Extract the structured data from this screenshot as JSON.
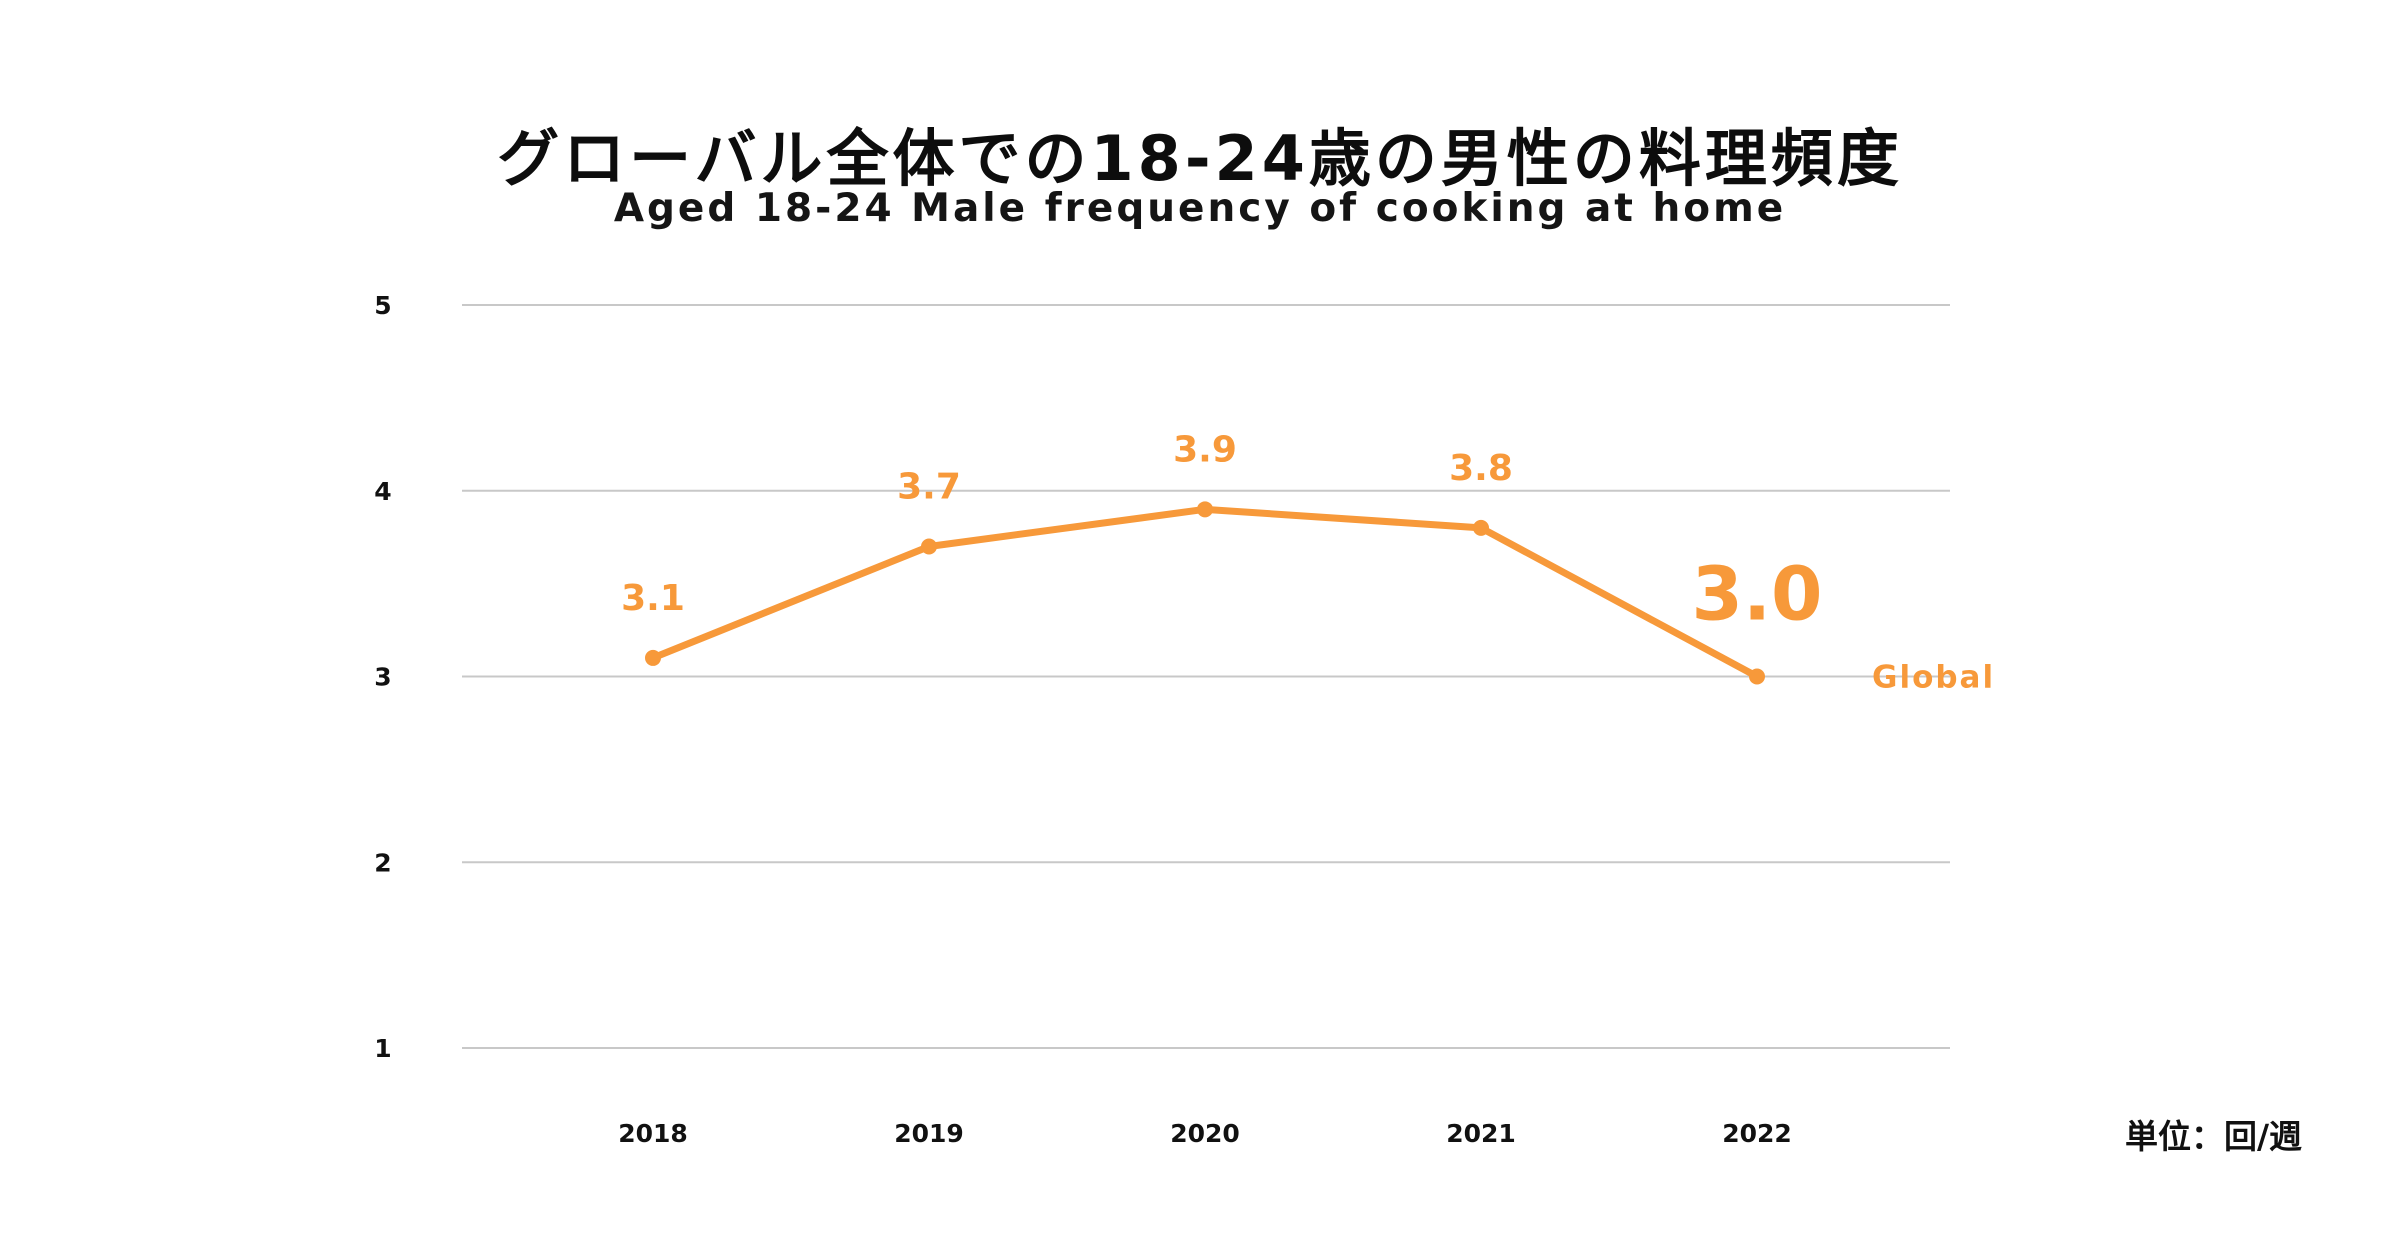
{
  "title": "グローバル全体での18-24歳の男性の料理頻度",
  "subtitle": "Aged 18-24 Male frequency of cooking at home",
  "unit_label": "単位：回/週",
  "colors": {
    "series": "#F7993A",
    "grid": "#c8c8c8",
    "text": "#111111"
  },
  "chart_data": {
    "type": "line",
    "title": "グローバル全体での18-24歳の男性の料理頻度",
    "subtitle": "Aged 18-24 Male frequency of cooking at home",
    "x": [
      "2018",
      "2019",
      "2020",
      "2021",
      "2022"
    ],
    "series": [
      {
        "name": "Global",
        "values": [
          3.1,
          3.7,
          3.9,
          3.8,
          3.0
        ],
        "value_labels": [
          "3.1",
          "3.7",
          "3.9",
          "3.8",
          "3.0"
        ]
      }
    ],
    "ylim": [
      1,
      5
    ],
    "yticks": [
      "1",
      "2",
      "3",
      "4",
      "5"
    ],
    "grid": true,
    "xlabel": "",
    "ylabel": ""
  }
}
